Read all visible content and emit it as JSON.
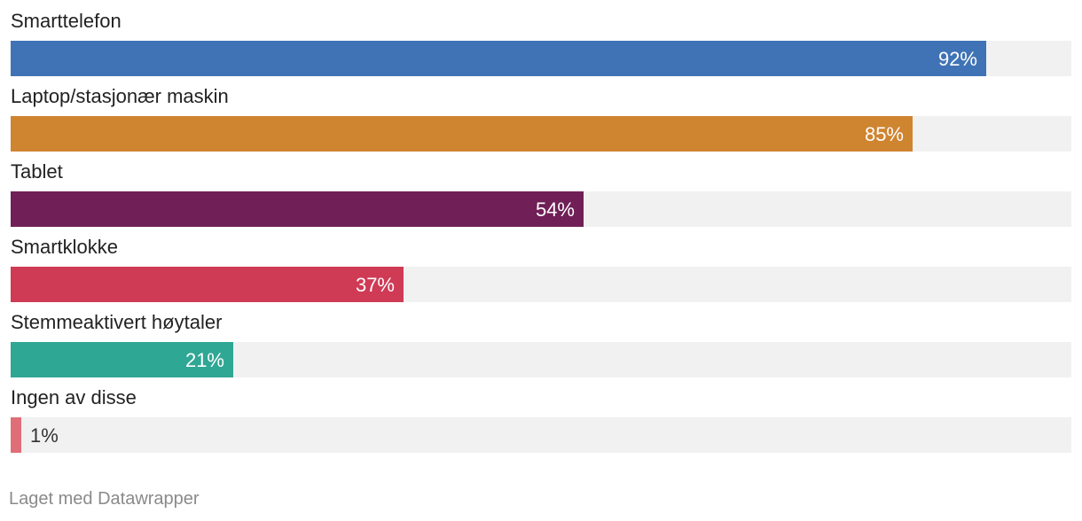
{
  "chart_data": {
    "type": "bar",
    "orientation": "horizontal",
    "categories": [
      "Smarttelefon",
      "Laptop/stasjonær maskin",
      "Tablet",
      "Smartklokke",
      "Stemmeaktivert høytaler",
      "Ingen av disse"
    ],
    "values": [
      92,
      85,
      54,
      37,
      21,
      1
    ],
    "value_labels": [
      "92%",
      "85%",
      "54%",
      "37%",
      "21%",
      "1%"
    ],
    "unit": "%",
    "xlim": [
      0,
      100
    ],
    "colors": [
      "#3f73b5",
      "#cf8430",
      "#701f57",
      "#cf3a55",
      "#2ea794",
      "#e06e78"
    ],
    "track_color": "#f1f1f1",
    "grid": false,
    "legend": "none"
  },
  "footer": {
    "credit": "Laget med Datawrapper"
  }
}
